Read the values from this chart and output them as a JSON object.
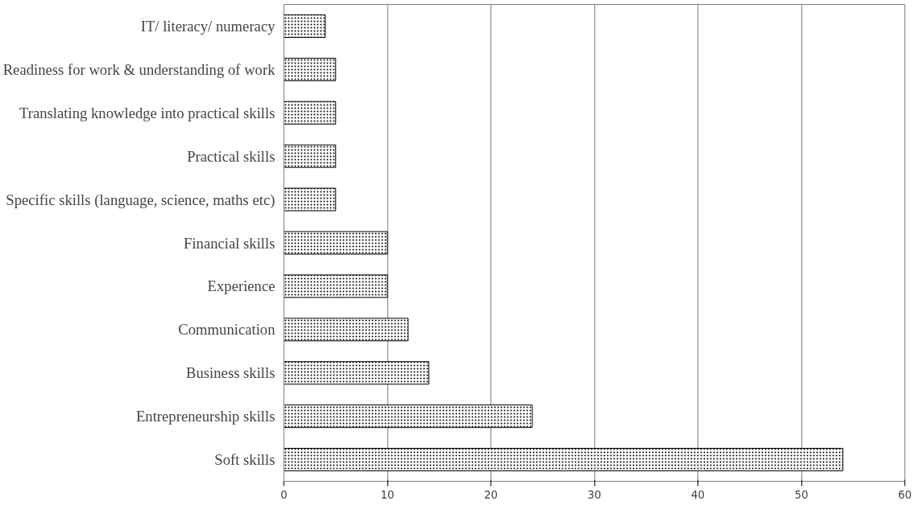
{
  "chart_data": {
    "type": "bar",
    "orientation": "horizontal",
    "categories": [
      "IT/ literacy/ numeracy",
      "Readiness for work & understanding of work",
      "Translating knowledge into practical skills",
      "Practical skills",
      "Specific skills (language, science, maths etc)",
      "Financial skills",
      "Experience",
      "Communication",
      "Business skills",
      "Entrepreneurship skills",
      "Soft skills"
    ],
    "values": [
      4,
      5,
      5,
      5,
      5,
      10,
      10,
      12,
      14,
      24,
      54
    ],
    "color": "#ffffff",
    "xlim": [
      0,
      60
    ],
    "xticks": [
      0,
      10,
      20,
      30,
      40,
      50,
      60
    ],
    "grid": "x"
  }
}
